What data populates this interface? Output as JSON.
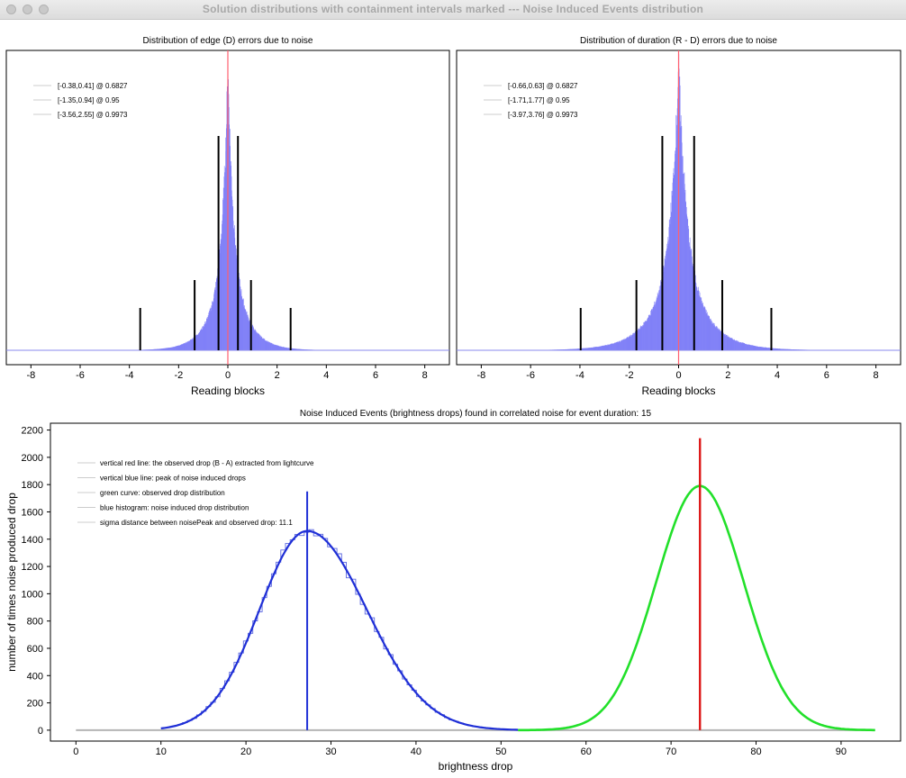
{
  "window": {
    "title": "Solution distributions with containment intervals marked --- Noise Induced Events distribution"
  },
  "colors": {
    "histogram_fill": "#7f7ff7",
    "marker_red": "#ff6070",
    "noise_blue": "#1f2fd6",
    "observed_green": "#22e02a",
    "observed_red": "#dd1818",
    "baseline_gray": "#b4b4b4"
  },
  "chart_data": [
    {
      "type": "bar",
      "title": "Distribution of edge (D) errors due to noise",
      "xlabel": "Reading blocks",
      "ylabel": "",
      "xlim": [
        -9,
        9
      ],
      "xticks": [
        -8,
        -6,
        -4,
        -2,
        0,
        2,
        4,
        6,
        8
      ],
      "grid": false,
      "legend_position": "top-left",
      "legend": [
        "[-0.38,0.41] @ 0.6827",
        "[-1.35,0.94] @ 0.95",
        "[-3.56,2.55] @ 0.9973"
      ],
      "peak_center": 0.0,
      "intervals": [
        {
          "low": -0.38,
          "high": 0.41,
          "level": 0.6827
        },
        {
          "low": -1.35,
          "high": 0.94,
          "level": 0.95
        },
        {
          "low": -3.56,
          "high": 2.55,
          "level": 0.9973
        }
      ]
    },
    {
      "type": "bar",
      "title": "Distribution of duration (R - D) errors due to noise",
      "xlabel": "Reading blocks",
      "ylabel": "",
      "xlim": [
        -9,
        9
      ],
      "xticks": [
        -8,
        -6,
        -4,
        -2,
        0,
        2,
        4,
        6,
        8
      ],
      "grid": false,
      "legend_position": "top-left",
      "legend": [
        "[-0.66,0.63] @ 0.6827",
        "[-1.71,1.77] @ 0.95",
        "[-3.97,3.76] @ 0.9973"
      ],
      "peak_center": 0.0,
      "intervals": [
        {
          "low": -0.66,
          "high": 0.63,
          "level": 0.6827
        },
        {
          "low": -1.71,
          "high": 1.77,
          "level": 0.95
        },
        {
          "low": -3.97,
          "high": 3.76,
          "level": 0.9973
        }
      ]
    },
    {
      "type": "line",
      "title": "Noise Induced Events (brightness drops) found in correlated noise for event duration: 15",
      "xlabel": "brightness drop",
      "ylabel": "number of times noise produced drop",
      "xlim": [
        -3,
        97
      ],
      "ylim": [
        -80,
        2250
      ],
      "xticks": [
        0,
        10,
        20,
        30,
        40,
        50,
        60,
        70,
        80,
        90
      ],
      "yticks": [
        0,
        200,
        400,
        600,
        800,
        1000,
        1200,
        1400,
        1600,
        1800,
        2000,
        2200
      ],
      "grid": false,
      "legend_position": "top-left",
      "legend": [
        "vertical red line: the observed drop (B - A) extracted from lightcurve",
        "vertical blue line: peak of noise induced drops",
        "green curve: observed drop distribution",
        "blue histogram: noise induced drop distribution",
        "sigma distance between noisePeak and observed drop: 11.1"
      ],
      "series": [
        {
          "kind": "noise",
          "peak_x": 27.2,
          "peak_y": 1460,
          "curve_x": [
            10,
            52
          ]
        },
        {
          "kind": "observed",
          "peak_x": 73.4,
          "peak_y": 1790,
          "curve_x": [
            52,
            94
          ]
        }
      ],
      "baseline_x": [
        0,
        94
      ],
      "blue_line": {
        "x": 27.2,
        "top": 1750
      },
      "red_line": {
        "x": 73.4,
        "top": 2140
      }
    }
  ]
}
